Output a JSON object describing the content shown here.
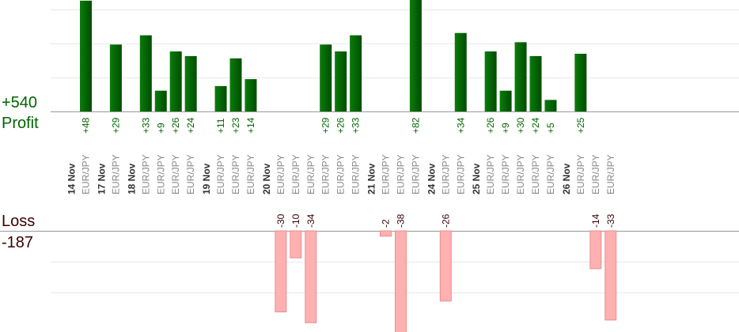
{
  "summary": {
    "profit_total": "+540",
    "profit_label": "Profit",
    "loss_label": "Loss",
    "loss_total": "-187"
  },
  "colors": {
    "profit_bar_dark": "#004d00",
    "profit_bar_light": "#0a7d0a",
    "profit_text": "#006400",
    "loss_bar": "#ffb0b0",
    "loss_bar_border": "#e89090",
    "loss_text": "#3a0000",
    "grid": "#e8e8e8",
    "baseline": "#999999",
    "day_label": "#333333",
    "pair_label": "#888888"
  },
  "chart_data": {
    "type": "bar",
    "title": "",
    "xlabel": "",
    "ylabel": "",
    "grid": true,
    "legend": "none",
    "profit_ylim": [
      0,
      48
    ],
    "loss_ylim": [
      0,
      34
    ],
    "days": [
      "14 Nov",
      "17 Nov",
      "18 Nov",
      "19 Nov",
      "20 Nov",
      "21 Nov",
      "24 Nov",
      "25 Nov",
      "26 Nov"
    ],
    "trades": [
      {
        "day": "14 Nov",
        "pair": "EUR/JPY",
        "pl": 48
      },
      {
        "day": "17 Nov",
        "pair": "EUR/JPY",
        "pl": 29
      },
      {
        "day": "18 Nov",
        "pair": "EUR/JPY",
        "pl": 33
      },
      {
        "day": "18 Nov",
        "pair": "EUR/JPY",
        "pl": 9
      },
      {
        "day": "18 Nov",
        "pair": "EUR/JPY",
        "pl": 26
      },
      {
        "day": "18 Nov",
        "pair": "EUR/JPY",
        "pl": 24
      },
      {
        "day": "19 Nov",
        "pair": "EUR/JPY",
        "pl": 11
      },
      {
        "day": "19 Nov",
        "pair": "EUR/JPY",
        "pl": 23
      },
      {
        "day": "19 Nov",
        "pair": "EUR/JPY",
        "pl": 14
      },
      {
        "day": "20 Nov",
        "pair": "EUR/JPY",
        "pl": -30
      },
      {
        "day": "20 Nov",
        "pair": "EUR/JPY",
        "pl": -10
      },
      {
        "day": "20 Nov",
        "pair": "EUR/JPY",
        "pl": -34
      },
      {
        "day": "20 Nov",
        "pair": "EUR/JPY",
        "pl": 29
      },
      {
        "day": "20 Nov",
        "pair": "EUR/JPY",
        "pl": 26
      },
      {
        "day": "20 Nov",
        "pair": "EUR/JPY",
        "pl": 33
      },
      {
        "day": "21 Nov",
        "pair": "EUR/JPY",
        "pl": -2
      },
      {
        "day": "21 Nov",
        "pair": "EUR/JPY",
        "pl": -38
      },
      {
        "day": "21 Nov",
        "pair": "EUR/JPY",
        "pl": 82
      },
      {
        "day": "24 Nov",
        "pair": "EUR/JPY",
        "pl": -26
      },
      {
        "day": "24 Nov",
        "pair": "EUR/JPY",
        "pl": 34
      },
      {
        "day": "25 Nov",
        "pair": "EUR/JPY",
        "pl": 26
      },
      {
        "day": "25 Nov",
        "pair": "EUR/JPY",
        "pl": 9
      },
      {
        "day": "25 Nov",
        "pair": "EUR/JPY",
        "pl": 30
      },
      {
        "day": "25 Nov",
        "pair": "EUR/JPY",
        "pl": 24
      },
      {
        "day": "25 Nov",
        "pair": "EUR/JPY",
        "pl": 5
      },
      {
        "day": "26 Nov",
        "pair": "EUR/JPY",
        "pl": 25
      },
      {
        "day": "26 Nov",
        "pair": "EUR/JPY",
        "pl": -14
      },
      {
        "day": "26 Nov",
        "pair": "EUR/JPY",
        "pl": -33
      }
    ]
  }
}
